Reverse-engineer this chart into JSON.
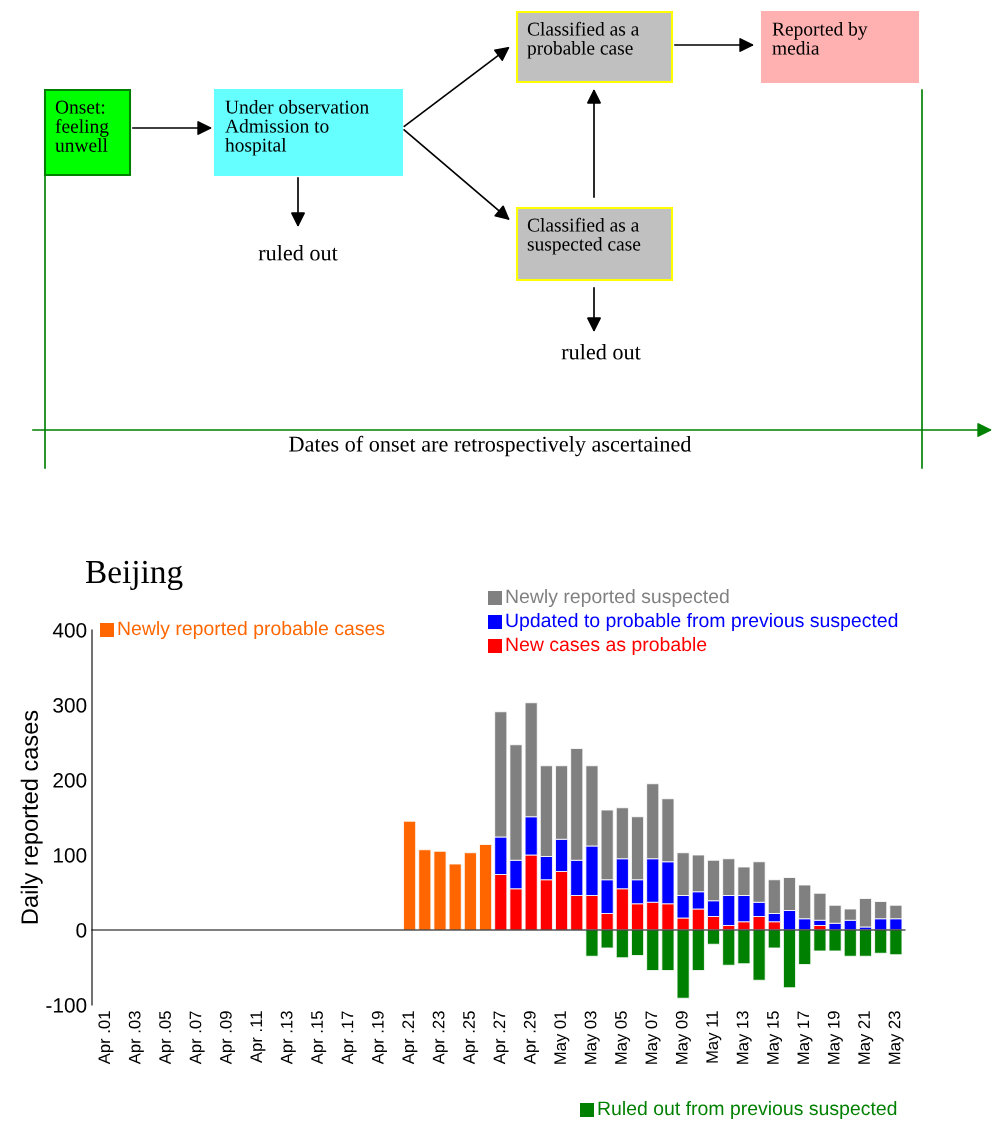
{
  "chart_data": [
    {
      "type": "other",
      "annotations": [
        "Onset:\nfeeling\nunwell",
        "Under observation\nAdmission to\nhospital",
        "ruled out",
        "Classified as a\nprobable case",
        "Reported by\nmedia",
        "Classified as a\nsuspected case",
        "ruled out",
        "Dates of onset are retrospectively ascertained"
      ]
    },
    {
      "type": "bar",
      "title": "Beijing",
      "ylabel": "Daily reported cases",
      "stacked": true,
      "categories": [
        "Apr .01",
        null,
        "Apr .03",
        null,
        "Apr .05",
        null,
        "Apr .07",
        null,
        "Apr .09",
        null,
        "Apr .11",
        null,
        "Apr .13",
        null,
        "Apr .15",
        null,
        "Apr .17",
        null,
        "Apr .19",
        null,
        "Apr .21",
        null,
        "Apr .23",
        null,
        "Apr .25",
        null,
        "Apr .27",
        null,
        "Apr .29",
        null,
        "May 01",
        null,
        "May 03",
        null,
        "May 05",
        null,
        "May 07",
        null,
        "May 09",
        null,
        "May 11",
        null,
        "May 13",
        null,
        "May 15",
        null,
        "May 17",
        null,
        "May 19",
        null,
        "May 21",
        null,
        "May 23"
      ],
      "series": [
        {
          "name": "Newly reported probable cases",
          "color": "#ff6600",
          "values": [
            null,
            null,
            null,
            null,
            null,
            null,
            null,
            null,
            null,
            null,
            null,
            null,
            null,
            null,
            null,
            null,
            null,
            null,
            null,
            null,
            145,
            107,
            105,
            88,
            103,
            114,
            null,
            null,
            null,
            null,
            null,
            null,
            null,
            null,
            null,
            null,
            null,
            null,
            null,
            null,
            null,
            null,
            null,
            null,
            null,
            null,
            null,
            null,
            null,
            null,
            null,
            null,
            null
          ]
        },
        {
          "name": "New cases as probable",
          "color": "#ff0000",
          "values": [
            null,
            null,
            null,
            null,
            null,
            null,
            null,
            null,
            null,
            null,
            null,
            null,
            null,
            null,
            null,
            null,
            null,
            null,
            null,
            null,
            null,
            null,
            null,
            null,
            null,
            null,
            74,
            55,
            100,
            67,
            78,
            46,
            46,
            22,
            55,
            35,
            37,
            35,
            16,
            28,
            18,
            6,
            11,
            18,
            11,
            0,
            0,
            6,
            0,
            0,
            0,
            0,
            0
          ]
        },
        {
          "name": "Updated to probable from previous suspected",
          "color": "#0000ff",
          "values": [
            null,
            null,
            null,
            null,
            null,
            null,
            null,
            null,
            null,
            null,
            null,
            null,
            null,
            null,
            null,
            null,
            null,
            null,
            null,
            null,
            null,
            null,
            null,
            null,
            null,
            null,
            50,
            38,
            51,
            31,
            43,
            47,
            66,
            45,
            40,
            32,
            58,
            56,
            30,
            23,
            21,
            40,
            35,
            19,
            11,
            26,
            15,
            7,
            9,
            13,
            4,
            15,
            15
          ]
        },
        {
          "name": "Newly reported suspected",
          "color": "#808080",
          "values": [
            null,
            null,
            null,
            null,
            null,
            null,
            null,
            null,
            null,
            null,
            null,
            null,
            null,
            null,
            null,
            null,
            null,
            null,
            null,
            null,
            null,
            null,
            null,
            null,
            null,
            null,
            167,
            154,
            152,
            121,
            98,
            149,
            107,
            93,
            68,
            84,
            100,
            84,
            57,
            49,
            54,
            49,
            38,
            54,
            45,
            44,
            45,
            36,
            24,
            15,
            38,
            23,
            18
          ]
        },
        {
          "name": "Ruled out from previous suspected",
          "color": "#008000",
          "values": [
            null,
            null,
            null,
            null,
            null,
            null,
            null,
            null,
            null,
            null,
            null,
            null,
            null,
            null,
            null,
            null,
            null,
            null,
            null,
            null,
            null,
            null,
            null,
            null,
            null,
            null,
            null,
            null,
            null,
            null,
            null,
            null,
            -35,
            -24,
            -37,
            -34,
            -54,
            -54,
            -91,
            -54,
            -19,
            -47,
            -45,
            -67,
            -24,
            -77,
            -46,
            -28,
            -28,
            -35,
            -35,
            -31,
            -33
          ]
        }
      ],
      "ylim": [
        -100,
        400
      ],
      "yticks": [
        -100,
        0,
        100,
        200,
        300,
        400
      ],
      "legend": "bottom right"
    }
  ]
}
